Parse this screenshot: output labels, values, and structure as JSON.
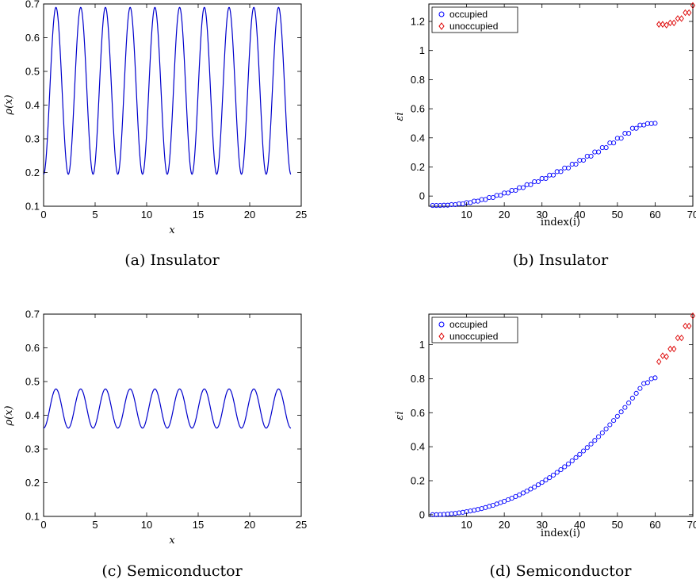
{
  "colors": {
    "curve": "#0000cc",
    "occupied": "#0000ff",
    "unoccupied": "#dd0000",
    "axes": "#000000"
  },
  "chart_data": [
    {
      "id": "a",
      "type": "line",
      "caption": "(a) Insulator",
      "xlabel": "x",
      "ylabel": "ρ(x)",
      "xlim": [
        0,
        25
      ],
      "ylim": [
        0.1,
        0.7
      ],
      "xticks": [
        "0",
        "5",
        "10",
        "15",
        "20",
        "25"
      ],
      "yticks": [
        "0.1",
        "0.2",
        "0.3",
        "0.4",
        "0.5",
        "0.6",
        "0.7"
      ],
      "series": [
        {
          "function": "cosine",
          "x_range": [
            0,
            24
          ],
          "mean": 0.4425,
          "amplitude": 0.2475,
          "period": 2.4,
          "min_at_x": 0.0,
          "min_value": 0.195,
          "max_value": 0.69
        }
      ]
    },
    {
      "id": "b",
      "type": "scatter",
      "caption": "(b) Insulator",
      "xlabel": "index(i)",
      "ylabel": "εi",
      "xlim": [
        0,
        70
      ],
      "ylim": [
        -0.07,
        1.32
      ],
      "xticks": [
        "10",
        "20",
        "30",
        "40",
        "50",
        "60",
        "70"
      ],
      "yticks": [
        "0",
        "0.2",
        "0.4",
        "0.6",
        "0.8",
        "1",
        "1.2"
      ],
      "legend": {
        "position": "top-left",
        "entries": [
          "occupied",
          "unoccupied"
        ]
      },
      "series": [
        {
          "name": "occupied",
          "marker": "circle",
          "x": [
            1,
            2,
            3,
            4,
            5,
            6,
            7,
            8,
            9,
            10,
            11,
            12,
            13,
            14,
            15,
            16,
            17,
            18,
            19,
            20,
            21,
            22,
            23,
            24,
            25,
            26,
            27,
            28,
            29,
            30,
            31,
            32,
            33,
            34,
            35,
            36,
            37,
            38,
            39,
            40,
            41,
            42,
            43,
            44,
            45,
            46,
            47,
            48,
            49,
            50,
            51,
            52,
            53,
            54,
            55,
            56,
            57,
            58,
            59,
            60
          ],
          "y": [
            -0.065,
            -0.065,
            -0.065,
            -0.063,
            -0.063,
            -0.059,
            -0.059,
            -0.053,
            -0.053,
            -0.045,
            -0.045,
            -0.035,
            -0.035,
            -0.024,
            -0.024,
            -0.01,
            -0.01,
            0.005,
            0.005,
            0.021,
            0.021,
            0.039,
            0.039,
            0.058,
            0.058,
            0.078,
            0.078,
            0.099,
            0.099,
            0.121,
            0.121,
            0.144,
            0.144,
            0.168,
            0.168,
            0.193,
            0.193,
            0.219,
            0.219,
            0.246,
            0.246,
            0.274,
            0.274,
            0.303,
            0.303,
            0.333,
            0.333,
            0.365,
            0.365,
            0.397,
            0.397,
            0.431,
            0.431,
            0.466,
            0.466,
            0.488,
            0.488,
            0.498,
            0.498,
            0.5
          ]
        },
        {
          "name": "unoccupied",
          "marker": "diamond",
          "x": [
            61,
            62,
            63,
            64,
            65,
            66,
            67,
            68,
            69,
            70
          ],
          "y": [
            1.18,
            1.18,
            1.175,
            1.19,
            1.19,
            1.22,
            1.22,
            1.26,
            1.26,
            1.31
          ]
        }
      ]
    },
    {
      "id": "c",
      "type": "line",
      "caption": "(c) Semiconductor",
      "xlabel": "x",
      "ylabel": "ρ(x)",
      "xlim": [
        0,
        25
      ],
      "ylim": [
        0.1,
        0.7
      ],
      "xticks": [
        "0",
        "5",
        "10",
        "15",
        "20",
        "25"
      ],
      "yticks": [
        "0.1",
        "0.2",
        "0.3",
        "0.4",
        "0.5",
        "0.6",
        "0.7"
      ],
      "series": [
        {
          "function": "cosine",
          "x_range": [
            0,
            24
          ],
          "mean": 0.42,
          "amplitude": 0.058,
          "period": 2.4,
          "min_at_x": 0.0,
          "min_value": 0.362,
          "max_value": 0.478
        }
      ]
    },
    {
      "id": "d",
      "type": "scatter",
      "caption": "(d) Semiconductor",
      "xlabel": "index(i)",
      "ylabel": "εi",
      "xlim": [
        0,
        70
      ],
      "ylim": [
        -0.01,
        1.18
      ],
      "xticks": [
        "10",
        "20",
        "30",
        "40",
        "50",
        "60",
        "70"
      ],
      "yticks": [
        "0",
        "0.2",
        "0.4",
        "0.6",
        "0.8",
        "1"
      ],
      "legend": {
        "position": "top-left",
        "entries": [
          "occupied",
          "unoccupied"
        ]
      },
      "series": [
        {
          "name": "occupied",
          "marker": "circle",
          "x": [
            1,
            2,
            3,
            4,
            5,
            6,
            7,
            8,
            9,
            10,
            11,
            12,
            13,
            14,
            15,
            16,
            17,
            18,
            19,
            20,
            21,
            22,
            23,
            24,
            25,
            26,
            27,
            28,
            29,
            30,
            31,
            32,
            33,
            34,
            35,
            36,
            37,
            38,
            39,
            40,
            41,
            42,
            43,
            44,
            45,
            46,
            47,
            48,
            49,
            50,
            51,
            52,
            53,
            54,
            55,
            56,
            57,
            58,
            59,
            60
          ],
          "y": [
            0.0,
            0.0,
            0.001,
            0.002,
            0.004,
            0.006,
            0.008,
            0.011,
            0.014,
            0.018,
            0.022,
            0.026,
            0.031,
            0.036,
            0.042,
            0.049,
            0.055,
            0.063,
            0.071,
            0.079,
            0.088,
            0.097,
            0.107,
            0.117,
            0.128,
            0.139,
            0.151,
            0.163,
            0.176,
            0.19,
            0.204,
            0.218,
            0.233,
            0.249,
            0.265,
            0.282,
            0.299,
            0.317,
            0.336,
            0.355,
            0.375,
            0.395,
            0.416,
            0.437,
            0.459,
            0.482,
            0.505,
            0.529,
            0.554,
            0.579,
            0.605,
            0.631,
            0.658,
            0.686,
            0.714,
            0.743,
            0.772,
            0.777,
            0.8,
            0.805
          ]
        },
        {
          "name": "unoccupied",
          "marker": "diamond",
          "x": [
            61,
            62,
            63,
            64,
            65,
            66,
            67,
            68,
            69,
            70
          ],
          "y": [
            0.9,
            0.935,
            0.93,
            0.975,
            0.975,
            1.04,
            1.04,
            1.11,
            1.11,
            1.17
          ]
        }
      ]
    }
  ]
}
